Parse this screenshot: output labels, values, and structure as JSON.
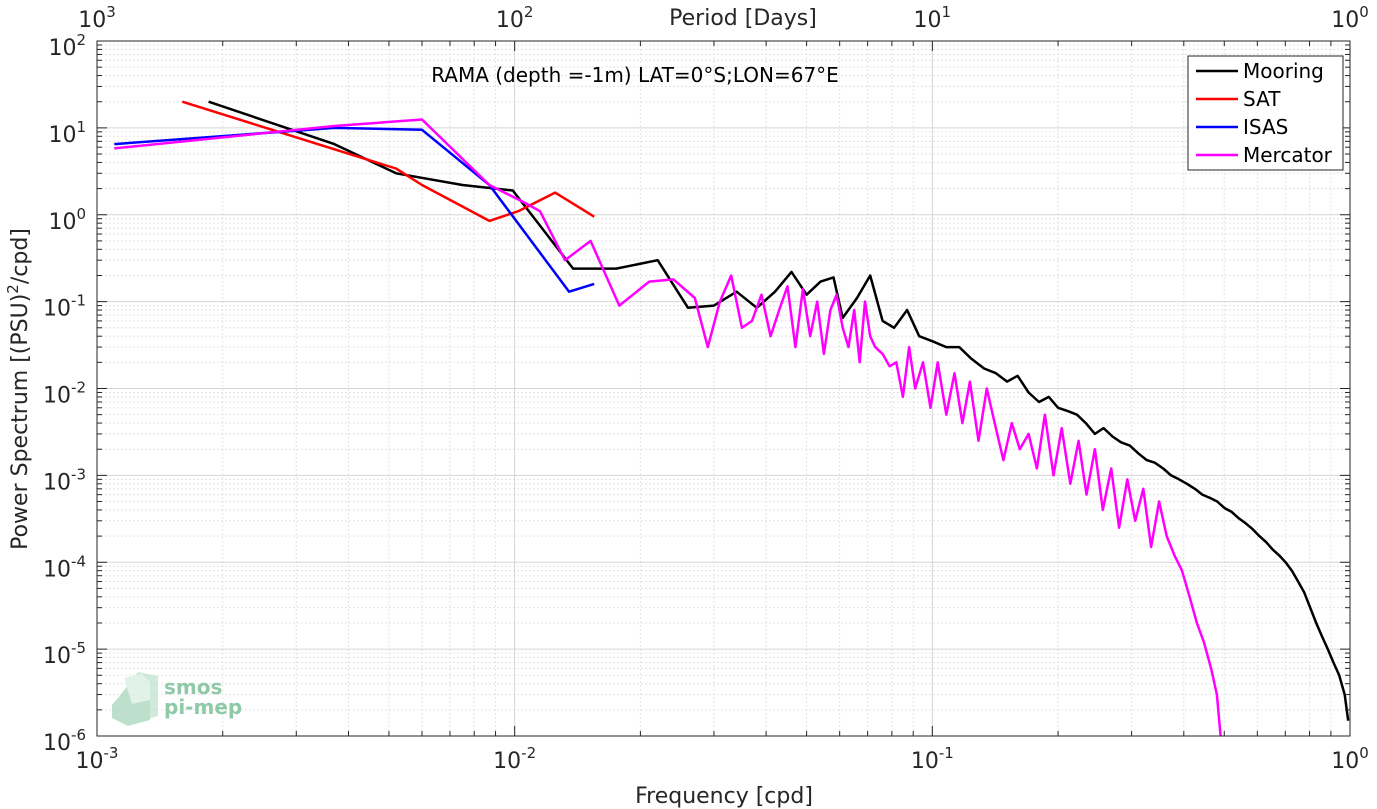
{
  "chart_data": {
    "type": "line",
    "title": "RAMA (depth =-1m) LAT=0°S;LON=67°E",
    "xlabel": "Frequency [cpd]",
    "ylabel_main": "Power Spectrum [(PSU)",
    "ylabel_sup": "2",
    "ylabel_tail": "/cpd]",
    "x2label": "Period [Days]",
    "xscale": "log",
    "yscale": "log",
    "xlim": [
      0.001,
      1
    ],
    "ylim": [
      1e-06,
      100
    ],
    "grid": true,
    "legend_position": "top-right",
    "x_ticks": [
      {
        "value": 0.001,
        "base": "10",
        "exp": "-3"
      },
      {
        "value": 0.01,
        "base": "10",
        "exp": "-2"
      },
      {
        "value": 0.1,
        "base": "10",
        "exp": "-1"
      },
      {
        "value": 1,
        "base": "10",
        "exp": "0"
      }
    ],
    "x2_ticks": [
      {
        "value": 0.001,
        "base": "10",
        "exp": "3"
      },
      {
        "value": 0.01,
        "base": "10",
        "exp": "2"
      },
      {
        "value": 0.1,
        "base": "10",
        "exp": "1"
      },
      {
        "value": 1,
        "base": "10",
        "exp": "0"
      }
    ],
    "y_ticks": [
      {
        "value": 100,
        "base": "10",
        "exp": "2"
      },
      {
        "value": 10,
        "base": "10",
        "exp": "1"
      },
      {
        "value": 1,
        "base": "10",
        "exp": "0"
      },
      {
        "value": 0.1,
        "base": "10",
        "exp": "-1"
      },
      {
        "value": 0.01,
        "base": "10",
        "exp": "-2"
      },
      {
        "value": 0.001,
        "base": "10",
        "exp": "-3"
      },
      {
        "value": 0.0001,
        "base": "10",
        "exp": "-4"
      },
      {
        "value": 1e-05,
        "base": "10",
        "exp": "-5"
      },
      {
        "value": 1e-06,
        "base": "10",
        "exp": "-6"
      }
    ],
    "series": [
      {
        "name": "Mooring",
        "color": "#000000",
        "x": [
          0.00185,
          0.0037,
          0.0052,
          0.0075,
          0.0099,
          0.0115,
          0.0138,
          0.0175,
          0.022,
          0.026,
          0.03,
          0.034,
          0.038,
          0.042,
          0.046,
          0.05,
          0.054,
          0.058,
          0.061,
          0.066,
          0.071,
          0.076,
          0.081,
          0.087,
          0.093,
          0.1,
          0.108,
          0.116,
          0.124,
          0.133,
          0.142,
          0.151,
          0.16,
          0.17,
          0.18,
          0.19,
          0.2,
          0.211,
          0.222,
          0.233,
          0.245,
          0.257,
          0.27,
          0.283,
          0.297,
          0.311,
          0.326,
          0.341,
          0.357,
          0.373,
          0.39,
          0.407,
          0.425,
          0.443,
          0.462,
          0.481,
          0.501,
          0.521,
          0.542,
          0.563,
          0.585,
          0.607,
          0.63,
          0.653,
          0.677,
          0.701,
          0.726,
          0.751,
          0.777,
          0.803,
          0.83,
          0.857,
          0.885,
          0.913,
          0.942,
          0.971,
          0.99
        ],
        "y": [
          20,
          6.5,
          3,
          2.2,
          1.9,
          0.75,
          0.24,
          0.24,
          0.3,
          0.085,
          0.09,
          0.13,
          0.085,
          0.13,
          0.22,
          0.12,
          0.17,
          0.19,
          0.065,
          0.11,
          0.2,
          0.06,
          0.05,
          0.08,
          0.04,
          0.035,
          0.03,
          0.03,
          0.022,
          0.017,
          0.015,
          0.012,
          0.014,
          0.009,
          0.007,
          0.008,
          0.006,
          0.0055,
          0.005,
          0.004,
          0.003,
          0.0035,
          0.0028,
          0.0024,
          0.0022,
          0.0018,
          0.0015,
          0.0014,
          0.0012,
          0.001,
          0.0009,
          0.0008,
          0.0007,
          0.0006,
          0.00055,
          0.0005,
          0.00042,
          0.00038,
          0.00032,
          0.00028,
          0.00024,
          0.0002,
          0.00017,
          0.00014,
          0.00012,
          0.0001,
          8e-05,
          6e-05,
          4.5e-05,
          3e-05,
          2e-05,
          1.4e-05,
          1e-05,
          7e-06,
          5e-06,
          3e-06,
          1.5e-06
        ]
      },
      {
        "name": "SAT",
        "color": "#ff0000",
        "x": [
          0.0016,
          0.0052,
          0.006,
          0.0087,
          0.0102,
          0.0125,
          0.0155
        ],
        "y": [
          20,
          3.4,
          2.2,
          0.85,
          1.1,
          1.8,
          0.95
        ]
      },
      {
        "name": "ISAS",
        "color": "#0000ff",
        "x": [
          0.0011,
          0.0037,
          0.006,
          0.0087,
          0.0135,
          0.0155
        ],
        "y": [
          6.5,
          10,
          9.5,
          2.2,
          0.13,
          0.16
        ]
      },
      {
        "name": "Mercator",
        "color": "#ff00ff",
        "x": [
          0.0011,
          0.0037,
          0.006,
          0.0087,
          0.0105,
          0.0115,
          0.0132,
          0.0152,
          0.0178,
          0.021,
          0.024,
          0.027,
          0.029,
          0.031,
          0.033,
          0.035,
          0.037,
          0.039,
          0.041,
          0.043,
          0.045,
          0.047,
          0.049,
          0.051,
          0.053,
          0.055,
          0.057,
          0.059,
          0.061,
          0.063,
          0.065,
          0.067,
          0.069,
          0.071,
          0.073,
          0.076,
          0.079,
          0.082,
          0.085,
          0.088,
          0.091,
          0.095,
          0.099,
          0.103,
          0.108,
          0.113,
          0.118,
          0.123,
          0.129,
          0.135,
          0.141,
          0.148,
          0.155,
          0.162,
          0.17,
          0.178,
          0.186,
          0.195,
          0.204,
          0.214,
          0.224,
          0.234,
          0.245,
          0.256,
          0.268,
          0.28,
          0.293,
          0.306,
          0.32,
          0.334,
          0.349,
          0.364,
          0.38,
          0.396,
          0.413,
          0.43,
          0.447,
          0.465,
          0.48,
          0.49
        ],
        "y": [
          5.8,
          10.5,
          12.5,
          2.2,
          1.4,
          1.1,
          0.3,
          0.5,
          0.09,
          0.17,
          0.18,
          0.11,
          0.03,
          0.1,
          0.2,
          0.05,
          0.06,
          0.12,
          0.04,
          0.08,
          0.15,
          0.03,
          0.14,
          0.04,
          0.1,
          0.025,
          0.08,
          0.12,
          0.05,
          0.03,
          0.08,
          0.02,
          0.1,
          0.04,
          0.03,
          0.025,
          0.018,
          0.02,
          0.008,
          0.03,
          0.01,
          0.02,
          0.006,
          0.02,
          0.005,
          0.015,
          0.004,
          0.012,
          0.0025,
          0.01,
          0.004,
          0.0015,
          0.004,
          0.002,
          0.003,
          0.0012,
          0.005,
          0.001,
          0.0035,
          0.0008,
          0.0025,
          0.0006,
          0.002,
          0.0004,
          0.0012,
          0.00025,
          0.0009,
          0.0003,
          0.0007,
          0.00015,
          0.0005,
          0.0002,
          0.00012,
          8e-05,
          4e-05,
          2e-05,
          1.2e-05,
          6e-06,
          3e-06,
          1e-06
        ]
      }
    ]
  },
  "logo": {
    "line1": "smos",
    "line2": "pi-mep"
  }
}
